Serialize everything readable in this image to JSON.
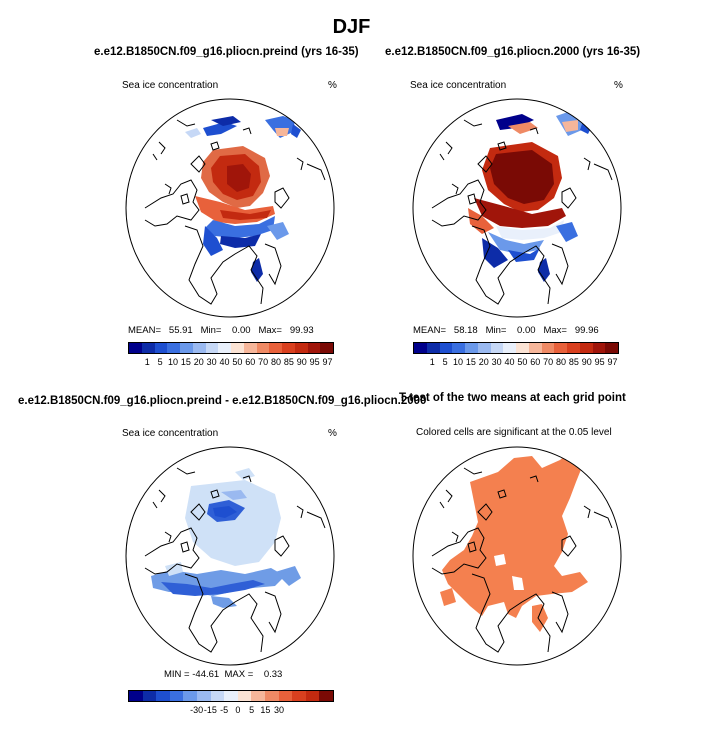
{
  "title": "DJF",
  "panels": {
    "p1": {
      "case_title": "e.e12.B1850CN.f09_g16.pliocn.preind (yrs 16-35)",
      "variable": "Sea ice concentration",
      "units": "%",
      "mean_label": "MEAN=",
      "mean": "55.91",
      "min_label": "Min=",
      "min": "0.00",
      "max_label": "Max=",
      "max": "99.93"
    },
    "p2": {
      "case_title": "e.e12.B1850CN.f09_g16.pliocn.2000 (yrs 16-35)",
      "variable": "Sea ice concentration",
      "units": "%",
      "mean_label": "MEAN=",
      "mean": "58.18",
      "min_label": "Min=",
      "min": "0.00",
      "max_label": "Max=",
      "max": "99.96"
    },
    "p3": {
      "case_title": "e.e12.B1850CN.f09_g16.pliocn.preind - e.e12.B1850CN.f09_g16.pliocn.2000",
      "variable": "Sea ice concentration",
      "units": "%",
      "min_label": "MIN =",
      "min": "-44.61",
      "max_label": "MAX =",
      "max": "0.33"
    },
    "p4": {
      "case_title": "T-test of the two means at each grid point",
      "subtitle": "Colored cells are significant at the 0.05 level"
    }
  },
  "colorbar_abs": {
    "ticks": [
      "1",
      "5",
      "10",
      "15",
      "20",
      "30",
      "40",
      "50",
      "60",
      "70",
      "80",
      "85",
      "90",
      "95",
      "97"
    ],
    "colors": [
      "#00008b",
      "#0d2ca8",
      "#1e4fd0",
      "#3a6fe0",
      "#6b99ea",
      "#9ab9f0",
      "#c6d8f6",
      "#e9f0fb",
      "#fbe3d4",
      "#f6b69a",
      "#ef8a65",
      "#e8613b",
      "#d9401f",
      "#c32a10",
      "#a0150a",
      "#7a0a05"
    ]
  },
  "colorbar_diff": {
    "ticks": [
      "-30",
      "-15",
      "-5",
      "0",
      "5",
      "15",
      "30"
    ],
    "colors": [
      "#00008b",
      "#0d2ca8",
      "#1e4fd0",
      "#3a6fe0",
      "#6b99ea",
      "#9ab9f0",
      "#c6d8f6",
      "#e9f0fb",
      "#fbe3d4",
      "#f6b69a",
      "#ef8a65",
      "#e8613b",
      "#d9401f",
      "#c32a10",
      "#7a0a05"
    ]
  },
  "colors": {
    "ttest_fill": "#f4804f",
    "diff_light": "#cfe1f7",
    "diff_mid": "#6f9ce6",
    "diff_dark": "#2f5fd6"
  }
}
